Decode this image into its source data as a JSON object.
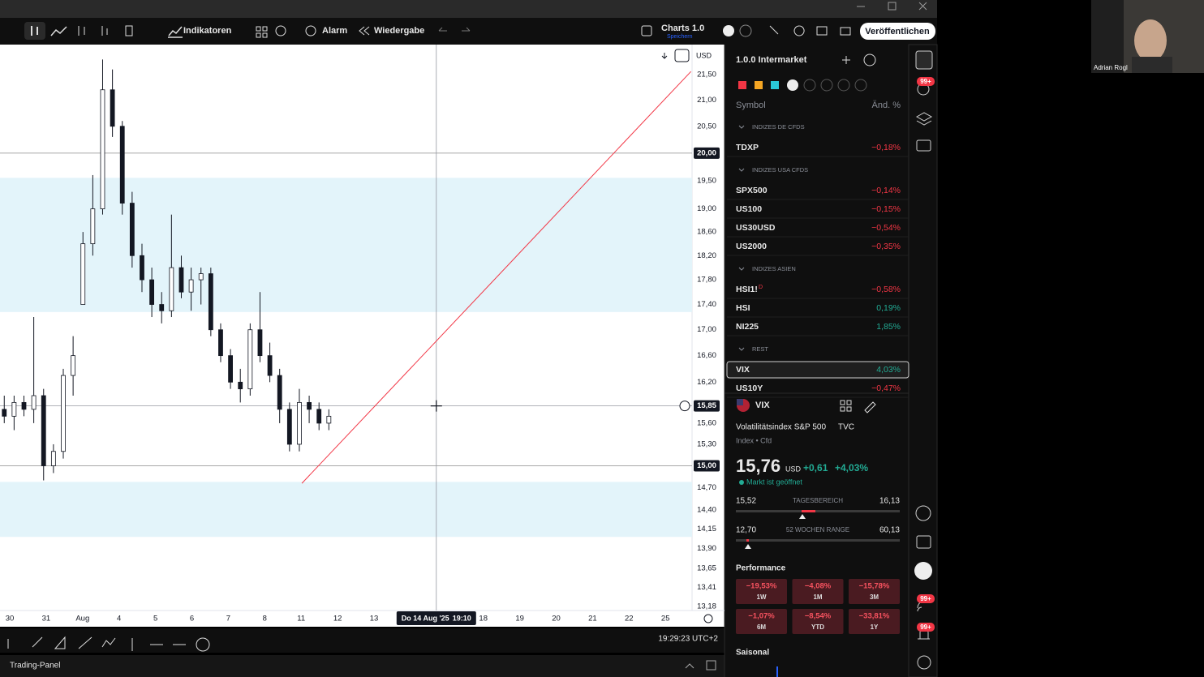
{
  "toolbar": {
    "indicators": "Indikatoren",
    "alarm": "Alarm",
    "replay": "Wiedergabe",
    "layout_name": "Charts 1.0",
    "layout_status": "Speichern",
    "publish": "Veröffentlichen"
  },
  "chart_data": {
    "type": "candlestick",
    "currency": "USD",
    "log_scale": true,
    "ylim": [
      13.13,
      22.1
    ],
    "yticks": [
      {
        "value": 21.5,
        "label": "21,50"
      },
      {
        "value": 21,
        "label": "21,00"
      },
      {
        "value": 20.5,
        "label": "20,50"
      },
      {
        "value": 19.5,
        "label": "19,50"
      },
      {
        "value": 19,
        "label": "19,00"
      },
      {
        "value": 18.6,
        "label": "18,60"
      },
      {
        "value": 18.2,
        "label": "18,20"
      },
      {
        "value": 17.8,
        "label": "17,80"
      },
      {
        "value": 17.4,
        "label": "17,40"
      },
      {
        "value": 17,
        "label": "17,00"
      },
      {
        "value": 16.6,
        "label": "16,60"
      },
      {
        "value": 16.2,
        "label": "16,20"
      },
      {
        "value": 15.6,
        "label": "15,60"
      },
      {
        "value": 15.3,
        "label": "15,30"
      },
      {
        "value": 14.7,
        "label": "14,70"
      },
      {
        "value": 14.4,
        "label": "14,40"
      },
      {
        "value": 14.15,
        "label": "14,15"
      },
      {
        "value": 13.9,
        "label": "13,90"
      },
      {
        "value": 13.65,
        "label": "13,65"
      },
      {
        "value": 13.41,
        "label": "13,41"
      },
      {
        "value": 13.18,
        "label": "13,18"
      }
    ],
    "xlim": [
      -0.267,
      18.73
    ],
    "categories": [
      "30",
      "31",
      "Aug",
      "4",
      "5",
      "6",
      "7",
      "8",
      "11",
      "12",
      "13",
      null,
      null,
      "18",
      "19",
      "20",
      "21",
      "22",
      "25"
    ],
    "candles": {
      "x": [
        -0.15,
        0.12,
        0.39,
        0.66,
        0.93,
        1.2,
        1.47,
        1.74,
        2.01,
        2.28,
        2.55,
        2.82,
        3.09,
        3.36,
        3.63,
        3.9,
        4.17,
        4.44,
        4.71,
        4.98,
        5.25,
        5.52,
        5.79,
        6.06,
        6.33,
        6.6,
        6.87,
        7.14,
        7.41,
        7.68,
        7.95,
        8.22,
        8.49,
        8.76
      ],
      "open": [
        15.8,
        15.7,
        15.9,
        15.8,
        16.0,
        15.0,
        15.2,
        16.3,
        17.4,
        18.4,
        19.0,
        21.2,
        20.5,
        19.1,
        18.2,
        17.8,
        17.4,
        17.3,
        18.0,
        17.6,
        17.8,
        17.9,
        17.0,
        16.6,
        16.2,
        16.1,
        17.0,
        16.6,
        16.3,
        15.8,
        15.3,
        15.9,
        15.8,
        15.6
      ],
      "high": [
        16.0,
        16.0,
        16.0,
        17.2,
        16.1,
        15.3,
        16.4,
        16.9,
        18.6,
        19.6,
        21.8,
        21.6,
        20.6,
        19.3,
        18.4,
        18.0,
        17.6,
        18.9,
        18.2,
        18.0,
        18.0,
        18.0,
        17.1,
        16.7,
        16.4,
        17.1,
        17.6,
        16.8,
        16.4,
        15.9,
        16.1,
        16.0,
        15.9,
        15.8
      ],
      "low": [
        15.6,
        15.5,
        15.7,
        15.6,
        14.8,
        14.9,
        15.1,
        16.0,
        17.4,
        18.2,
        18.9,
        20.3,
        18.9,
        18.0,
        17.6,
        17.2,
        17.1,
        17.2,
        17.5,
        17.3,
        17.4,
        16.9,
        16.5,
        16.1,
        15.9,
        16.0,
        16.5,
        16.2,
        15.6,
        15.2,
        15.2,
        15.6,
        15.5,
        15.5
      ],
      "close": [
        15.7,
        15.9,
        15.8,
        16.0,
        15.0,
        15.2,
        16.3,
        16.6,
        18.4,
        19.0,
        21.2,
        20.5,
        19.1,
        18.2,
        17.8,
        17.4,
        17.3,
        18.0,
        17.6,
        17.8,
        17.9,
        17.0,
        16.6,
        16.2,
        16.1,
        17.0,
        16.6,
        16.3,
        15.8,
        15.3,
        15.9,
        15.8,
        15.6,
        15.7
      ]
    },
    "zones": [
      {
        "from": 19.55,
        "to": 17.28
      },
      {
        "from": 14.78,
        "to": 14.05
      }
    ],
    "price_lines": [
      {
        "value": 20,
        "label": "20,00"
      },
      {
        "value": 15,
        "label": "15,00"
      }
    ],
    "trendline": {
      "x": [
        8.02,
        18.7
      ],
      "y": [
        14.76,
        21.56
      ]
    },
    "crosshair": {
      "x": 11.71,
      "value": 15.85,
      "label": "15,85",
      "time_label": "Do 14 Aug '25",
      "time": "19:10"
    }
  },
  "watchlist": {
    "title": "1.0.0 Intermarket",
    "col_symbol": "Symbol",
    "col_change": "Änd. %",
    "groups": [
      {
        "name": "INDIZES DE CFDS",
        "rows": [
          {
            "symbol": "TDXP",
            "change": "−0,18%"
          }
        ]
      },
      {
        "name": "INDIZES USA CFDS",
        "rows": [
          {
            "symbol": "SPX500",
            "change": "−0,14%"
          },
          {
            "symbol": "US100",
            "change": "−0,15%"
          },
          {
            "symbol": "US30USD",
            "change": "−0,54%"
          },
          {
            "symbol": "US2000",
            "change": "−0,35%"
          }
        ]
      },
      {
        "name": "INDIZES ASIEN",
        "rows": [
          {
            "symbol": "HSI1!",
            "flag": "D",
            "change": "−0,58%"
          },
          {
            "symbol": "HSI",
            "change": "0,19%"
          },
          {
            "symbol": "NI225",
            "change": "1,85%"
          }
        ]
      },
      {
        "name": "REST",
        "rows": [
          {
            "symbol": "VIX",
            "change": "4,03%"
          },
          {
            "symbol": "US10Y",
            "change": "−0,47%"
          }
        ]
      }
    ]
  },
  "symbol_detail": {
    "symbol": "VIX",
    "description": "Volatilitätsindex S&P 500",
    "exchange": "TVC",
    "type": "Index • Cfd",
    "price": "15,76",
    "currency": "USD",
    "change": "+0,61",
    "change_pct": "+4,03%",
    "status": "Markt ist geöffnet",
    "day_range": {
      "low": "15,52",
      "label": "TAGESBEREICH",
      "high": "16,13"
    },
    "week52_range": {
      "low": "12,70",
      "label": "52 WOCHEN RANGE",
      "high": "60,13"
    },
    "performance_title": "Performance",
    "performance": [
      {
        "value": "−19,53%",
        "period": "1W"
      },
      {
        "value": "−4,08%",
        "period": "1M"
      },
      {
        "value": "−15,78%",
        "period": "3M"
      },
      {
        "value": "−1,07%",
        "period": "6M"
      },
      {
        "value": "−8,54%",
        "period": "YTD"
      },
      {
        "value": "−33,81%",
        "period": "1Y"
      }
    ],
    "seasonal_title": "Saisonal"
  },
  "status_bar": {
    "clock": "19:29:23 UTC+2",
    "panel": "Trading-Panel"
  },
  "sidebar": {
    "badge_alerts": "99+",
    "badge_ideas": "99+",
    "badge_notifications": "99+"
  },
  "webcam": {
    "name": "Adrian Rogl"
  }
}
